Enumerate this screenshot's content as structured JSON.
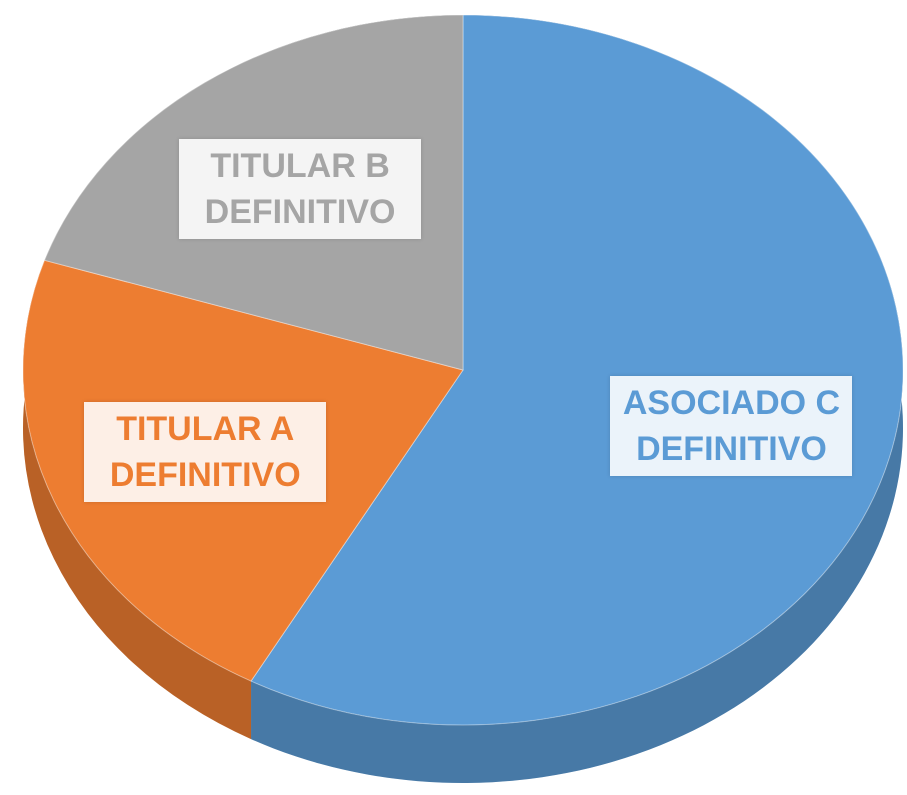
{
  "chart_data": {
    "type": "pie",
    "categories": [
      "ASOCIADO C DEFINITIVO",
      "TITULAR A DEFINITIVO",
      "TITULAR B DEFINITIVO"
    ],
    "values": [
      58,
      22,
      20
    ],
    "colors": [
      "#5b9bd5",
      "#ed7d31",
      "#a5a5a5"
    ]
  }
}
